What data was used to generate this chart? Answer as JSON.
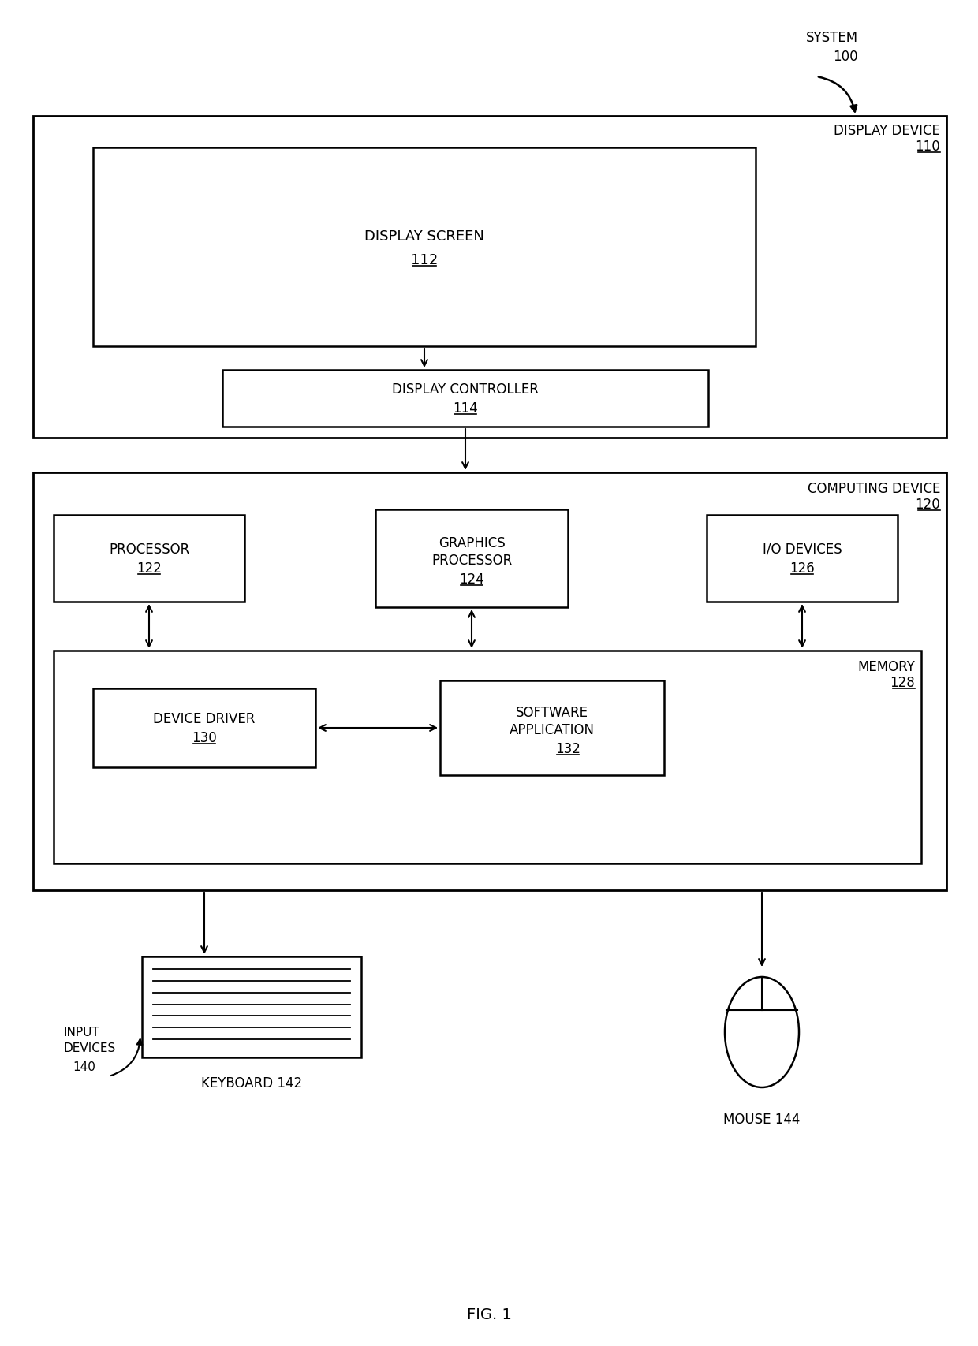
{
  "bg_color": "#ffffff",
  "fig_width": 12.4,
  "fig_height": 17.08,
  "title": "FIG. 1",
  "labels": {
    "system": "SYSTEM",
    "system_num": "100",
    "display_device": "DISPLAY DEVICE",
    "display_device_num": "110",
    "display_screen": "DISPLAY SCREEN",
    "display_screen_num": "112",
    "display_controller": "DISPLAY CONTROLLER",
    "display_controller_num": "114",
    "computing_device": "COMPUTING DEVICE",
    "computing_device_num": "120",
    "processor": "PROCESSOR",
    "processor_num": "122",
    "graphics_processor": "GRAPHICS\nPROCESSOR",
    "graphics_processor_num": "124",
    "io_devices": "I/O DEVICES",
    "io_devices_num": "126",
    "memory": "MEMORY",
    "memory_num": "128",
    "device_driver": "DEVICE DRIVER",
    "device_driver_num": "130",
    "software_application": "SOFTWARE\nAPPLICATION",
    "software_application_num": "132",
    "input_devices": "INPUT\nDEVICES",
    "input_devices_num": "140",
    "keyboard": "KEYBOARD 142",
    "mouse": "MOUSE 144"
  }
}
